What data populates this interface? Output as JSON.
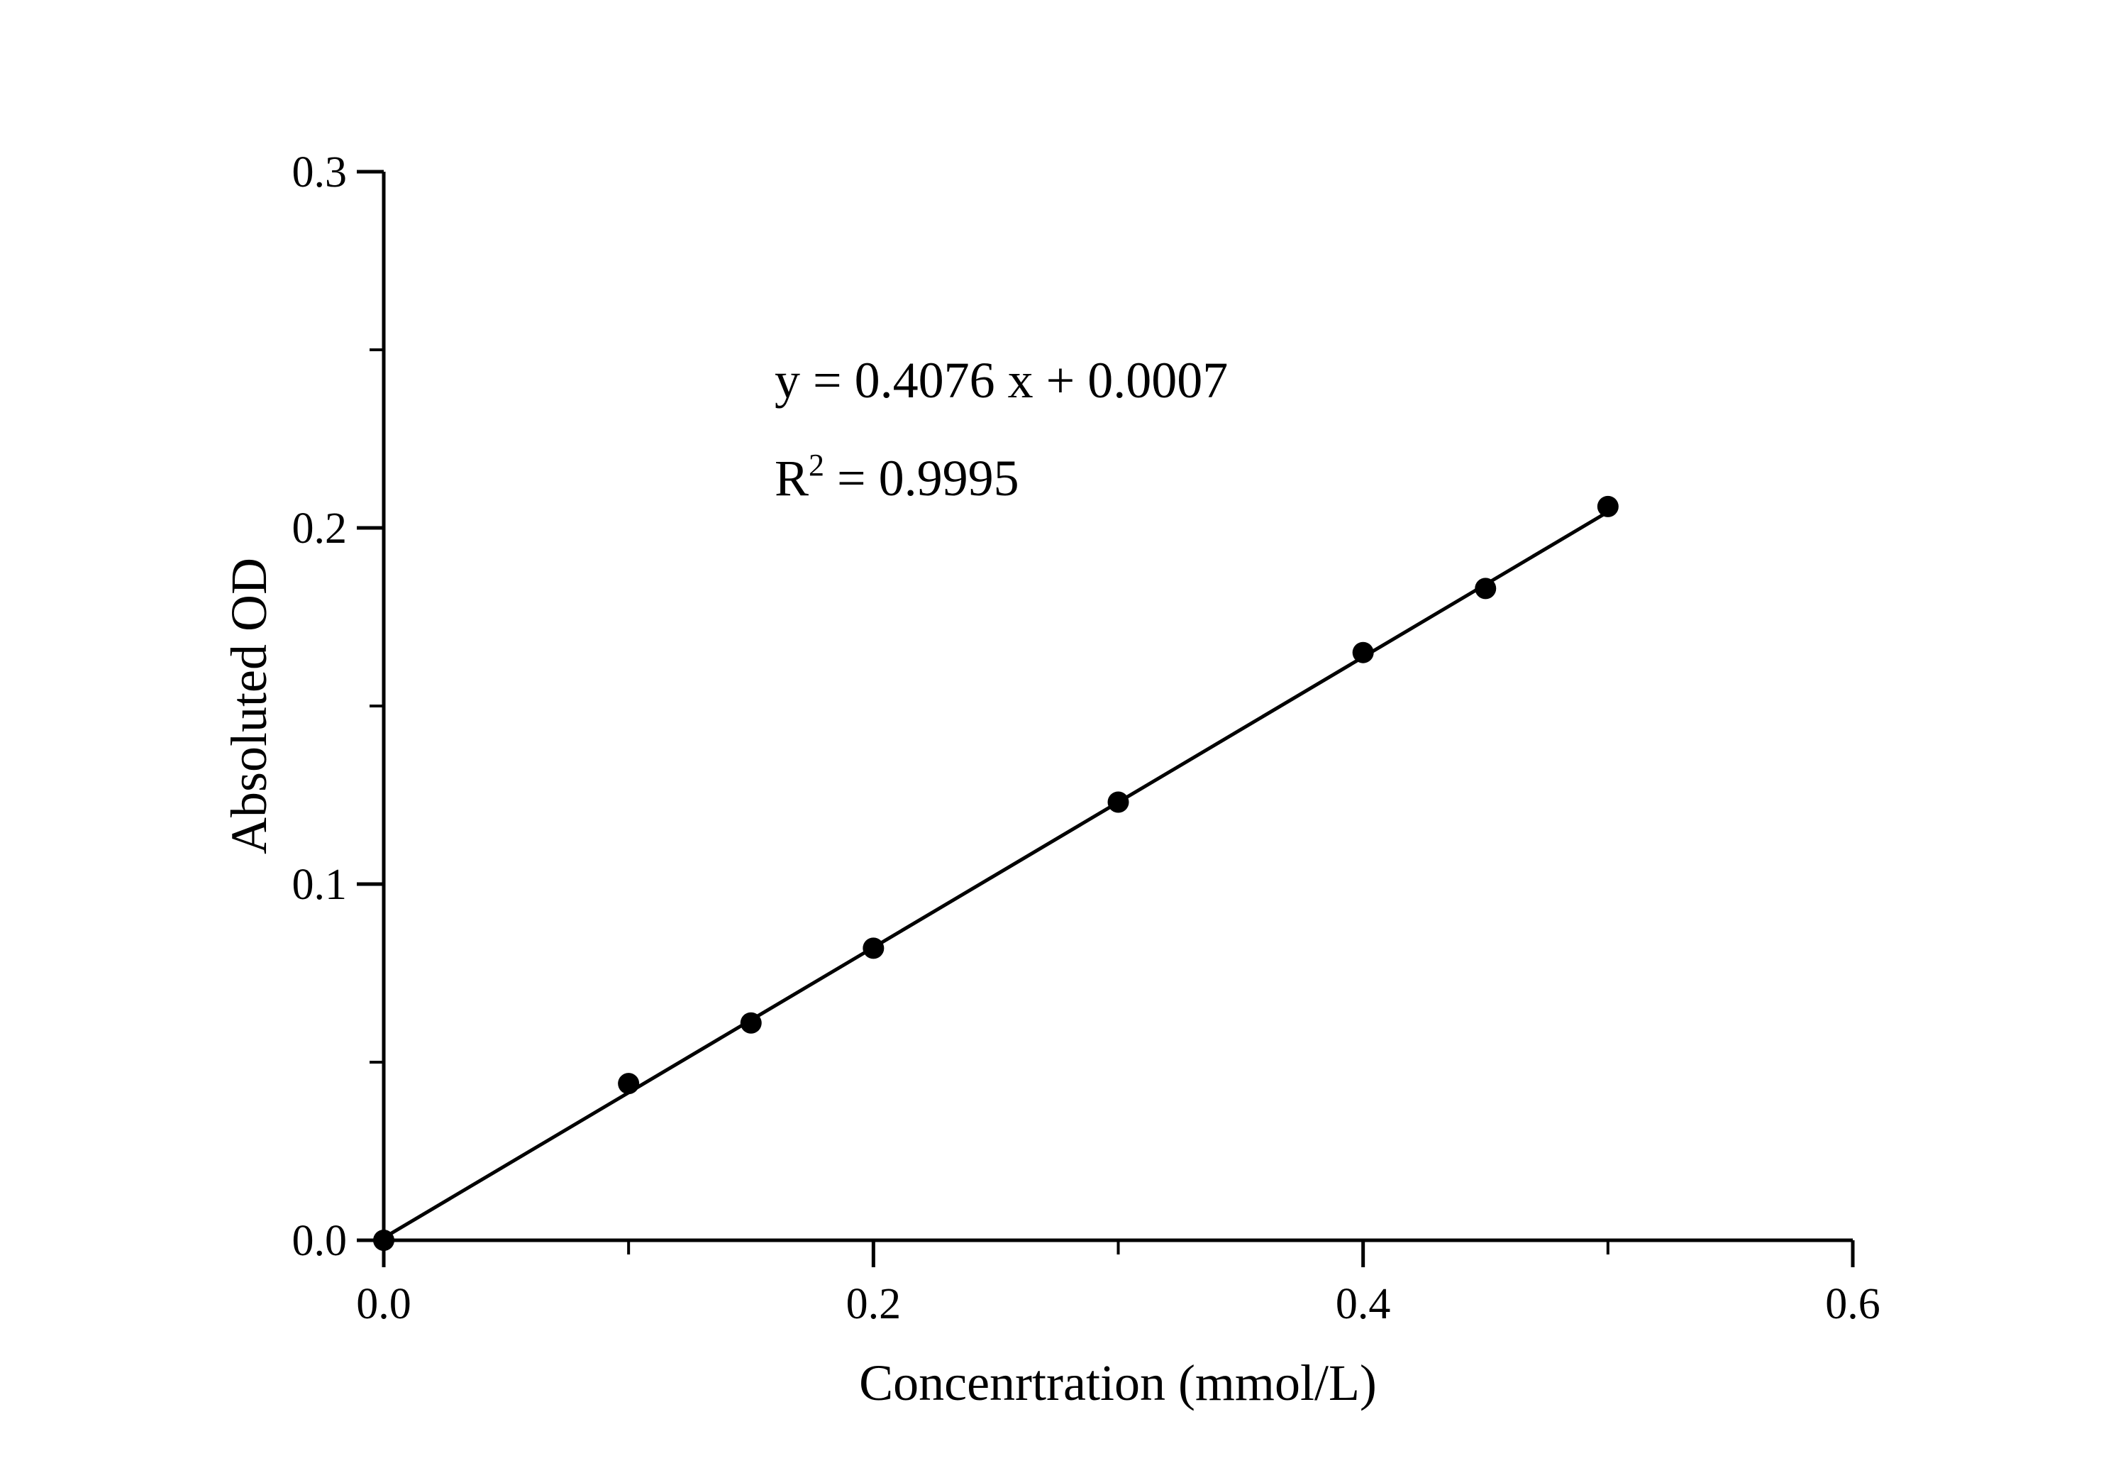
{
  "chart_data": {
    "type": "scatter",
    "title": "",
    "xlabel": "Concenrtration (mmol/L)",
    "ylabel": "Absoluted OD",
    "xlim": [
      0,
      0.6
    ],
    "ylim": [
      0,
      0.3
    ],
    "x_ticks": [
      "0.0",
      "0.2",
      "0.4",
      "0.6"
    ],
    "y_ticks": [
      "0.0",
      "0.1",
      "0.2",
      "0.3"
    ],
    "x_tick_values": [
      0,
      0.2,
      0.4,
      0.6
    ],
    "y_tick_values": [
      0,
      0.1,
      0.2,
      0.3
    ],
    "grid": false,
    "legend": "none",
    "series": [
      {
        "x": [
          0,
          0.1,
          0.15,
          0.2,
          0.3,
          0.4,
          0.45,
          0.5
        ],
        "y": [
          0.0,
          0.044,
          0.061,
          0.082,
          0.123,
          0.165,
          0.183,
          0.206
        ],
        "color": "#000000"
      }
    ],
    "fit_line": {
      "slope": 0.4076,
      "intercept": 0.0007,
      "x_range": [
        0,
        0.5
      ],
      "color": "#000000"
    },
    "annotations": {
      "equation": "y = 0.4076 x + 0.0007",
      "r_squared_prefix": "R",
      "r_squared_exponent": "2",
      "r_squared_value": " = 0.9995"
    }
  }
}
